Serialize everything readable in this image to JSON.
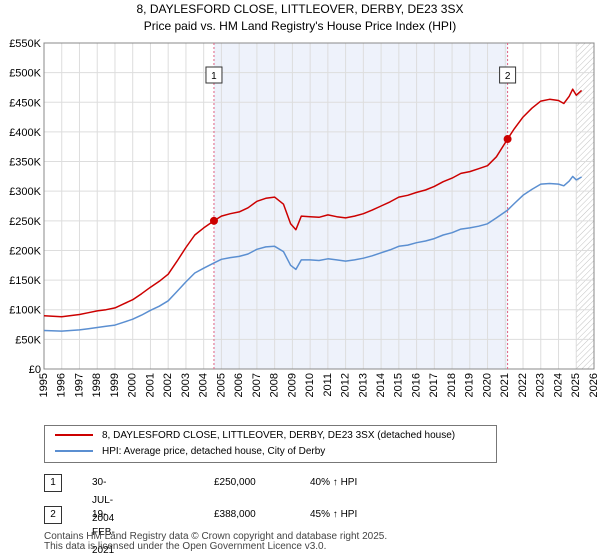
{
  "title_line1": "8, DAYLESFORD CLOSE, LITTLEOVER, DERBY, DE23 3SX",
  "title_line2": "Price paid vs. HM Land Registry's House Price Index (HPI)",
  "colors": {
    "price": "#cc0000",
    "hpi": "#5b8fd1",
    "shade": "#eef2fb",
    "marker": "#e06080",
    "grid": "#dddddd",
    "hatch": "#999999"
  },
  "chart_data": {
    "type": "line",
    "x_range": [
      1995,
      2026
    ],
    "ylim": [
      0,
      550000
    ],
    "y_ticks": [
      0,
      50000,
      100000,
      150000,
      200000,
      250000,
      300000,
      350000,
      400000,
      450000,
      500000,
      550000
    ],
    "y_tick_labels": [
      "£0",
      "£50K",
      "£100K",
      "£150K",
      "£200K",
      "£250K",
      "£300K",
      "£350K",
      "£400K",
      "£450K",
      "£500K",
      "£550K"
    ],
    "x_ticks": [
      1995,
      1996,
      1997,
      1998,
      1999,
      2000,
      2001,
      2002,
      2003,
      2004,
      2005,
      2006,
      2007,
      2008,
      2009,
      2010,
      2011,
      2012,
      2013,
      2014,
      2015,
      2016,
      2017,
      2018,
      2019,
      2020,
      2021,
      2022,
      2023,
      2024,
      2025,
      2026
    ],
    "x_tick_labels": [
      "1995",
      "1996",
      "1997",
      "1998",
      "1999",
      "2000",
      "2001",
      "2002",
      "2003",
      "2004",
      "2005",
      "2006",
      "2007",
      "2008",
      "2009",
      "2010",
      "2011",
      "2012",
      "2013",
      "2014",
      "2015",
      "2016",
      "2017",
      "2018",
      "2019",
      "2020",
      "2021",
      "2022",
      "2023",
      "2024",
      "2025",
      "2026"
    ],
    "shaded_range": [
      2004.58,
      2021.13
    ],
    "hatched_from": 2025.0,
    "series": [
      {
        "name": "8, DAYLESFORD CLOSE, LITTLEOVER, DERBY, DE23 3SX (detached house)",
        "x": [
          1995.0,
          1996.0,
          1997.0,
          1997.5,
          1998.0,
          1998.5,
          1999.0,
          1999.5,
          2000.0,
          2000.5,
          2001.0,
          2001.5,
          2002.0,
          2002.5,
          2003.0,
          2003.5,
          2004.0,
          2004.58,
          2005.0,
          2005.5,
          2006.0,
          2006.5,
          2007.0,
          2007.5,
          2008.0,
          2008.5,
          2008.9,
          2009.2,
          2009.5,
          2010.0,
          2010.5,
          2011.0,
          2011.5,
          2012.0,
          2012.5,
          2013.0,
          2013.5,
          2014.0,
          2014.5,
          2015.0,
          2015.5,
          2016.0,
          2016.5,
          2017.0,
          2017.5,
          2018.0,
          2018.5,
          2019.0,
          2019.5,
          2020.0,
          2020.5,
          2021.13,
          2021.5,
          2022.0,
          2022.5,
          2023.0,
          2023.5,
          2024.0,
          2024.3,
          2024.6,
          2024.8,
          2025.0,
          2025.3
        ],
        "y": [
          90000,
          88000,
          92000,
          95000,
          98000,
          100000,
          103000,
          110000,
          117000,
          127000,
          138000,
          148000,
          160000,
          182000,
          205000,
          226000,
          238000,
          250000,
          258000,
          262000,
          265000,
          272000,
          283000,
          288000,
          290000,
          278000,
          245000,
          235000,
          258000,
          257000,
          256000,
          260000,
          257000,
          255000,
          258000,
          262000,
          268000,
          275000,
          282000,
          290000,
          293000,
          298000,
          302000,
          308000,
          316000,
          322000,
          330000,
          333000,
          338000,
          343000,
          358000,
          388000,
          405000,
          425000,
          440000,
          452000,
          455000,
          453000,
          448000,
          460000,
          472000,
          462000,
          470000
        ]
      },
      {
        "name": "HPI: Average price, detached house, City of Derby",
        "x": [
          1995.0,
          1996.0,
          1997.0,
          1997.5,
          1998.0,
          1998.5,
          1999.0,
          1999.5,
          2000.0,
          2000.5,
          2001.0,
          2001.5,
          2002.0,
          2002.5,
          2003.0,
          2003.5,
          2004.0,
          2004.58,
          2005.0,
          2005.5,
          2006.0,
          2006.5,
          2007.0,
          2007.5,
          2008.0,
          2008.5,
          2008.9,
          2009.2,
          2009.5,
          2010.0,
          2010.5,
          2011.0,
          2011.5,
          2012.0,
          2012.5,
          2013.0,
          2013.5,
          2014.0,
          2014.5,
          2015.0,
          2015.5,
          2016.0,
          2016.5,
          2017.0,
          2017.5,
          2018.0,
          2018.5,
          2019.0,
          2019.5,
          2020.0,
          2020.5,
          2021.13,
          2021.5,
          2022.0,
          2022.5,
          2023.0,
          2023.5,
          2024.0,
          2024.3,
          2024.6,
          2024.8,
          2025.0,
          2025.3
        ],
        "y": [
          65000,
          64000,
          66000,
          68000,
          70000,
          72000,
          74000,
          79000,
          84000,
          91000,
          99000,
          106000,
          115000,
          131000,
          147000,
          162000,
          170000,
          179000,
          185000,
          188000,
          190000,
          194000,
          202000,
          206000,
          207000,
          198000,
          175000,
          168000,
          184000,
          184000,
          183000,
          186000,
          184000,
          182000,
          184000,
          187000,
          191000,
          196000,
          201000,
          207000,
          209000,
          213000,
          216000,
          220000,
          226000,
          230000,
          236000,
          238000,
          241000,
          245000,
          255000,
          268000,
          279000,
          293000,
          303000,
          312000,
          313000,
          312000,
          309000,
          317000,
          325000,
          319000,
          324000
        ]
      }
    ],
    "transactions": [
      {
        "label": "1",
        "x": 2004.58,
        "y": 250000
      },
      {
        "label": "2",
        "x": 2021.13,
        "y": 388000
      }
    ]
  },
  "legend": {
    "price_label": "8, DAYLESFORD CLOSE, LITTLEOVER, DERBY, DE23 3SX (detached house)",
    "hpi_label": "HPI: Average price, detached house, City of Derby"
  },
  "transactions": [
    {
      "num": "1",
      "date": "30-JUL-2004",
      "price": "£250,000",
      "hpi": "40% ↑ HPI"
    },
    {
      "num": "2",
      "date": "19-FEB-2021",
      "price": "£388,000",
      "hpi": "45% ↑ HPI"
    }
  ],
  "footer_line1": "Contains HM Land Registry data © Crown copyright and database right 2025.",
  "footer_line2": "This data is licensed under the Open Government Licence v3.0."
}
